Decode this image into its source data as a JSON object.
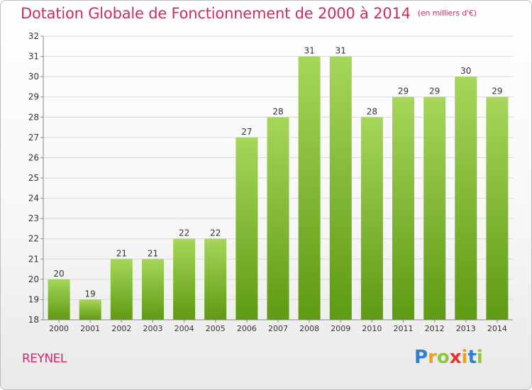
{
  "title": "Dotation Globale de Fonctionnement de 2000 à 2014",
  "unit": "(en milliers d'€)",
  "commune": "REYNEL",
  "brand": {
    "letters": [
      "P",
      "r",
      "o",
      "x",
      "i",
      "t",
      "i"
    ],
    "colors": [
      "#2f7fd0",
      "#f0a020",
      "#8fc63e",
      "#e8342c",
      "#f0a020",
      "#2f7fd0",
      "#8fc63e"
    ]
  },
  "colors": {
    "bar_top": "#a6d65a",
    "bar_bottom": "#5e9a12",
    "text": "#333333",
    "axis": "#888888",
    "grid": "#d8d8d8"
  },
  "chart_data": {
    "type": "bar",
    "title": "Dotation Globale de Fonctionnement de 2000 à 2014",
    "subtitle": "(en milliers d'€)",
    "xlabel": "",
    "ylabel": "",
    "ylim": [
      18,
      32
    ],
    "yticks": [
      18,
      19,
      20,
      21,
      22,
      23,
      24,
      25,
      26,
      27,
      28,
      29,
      30,
      31,
      32
    ],
    "grid": true,
    "categories": [
      "2000",
      "2001",
      "2002",
      "2003",
      "2004",
      "2005",
      "2006",
      "2007",
      "2008",
      "2009",
      "2010",
      "2011",
      "2012",
      "2013",
      "2014"
    ],
    "values": [
      20,
      19,
      21,
      21,
      22,
      22,
      27,
      28,
      31,
      31,
      28,
      29,
      29,
      30,
      29
    ]
  }
}
